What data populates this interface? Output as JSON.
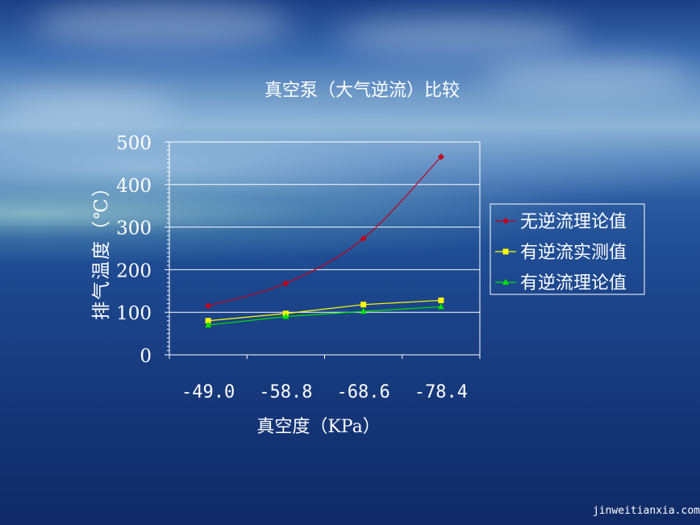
{
  "chart_data": {
    "type": "line",
    "title": "真空泵（大气逆流）比较",
    "xlabel": "真空度（KPa）",
    "ylabel": "排气温度（℃）",
    "categories": [
      "-49.0",
      "-58.8",
      "-68.6",
      "-78.4"
    ],
    "ylim": [
      0,
      500
    ],
    "yticks": [
      "0",
      "100",
      "200",
      "300",
      "400",
      "500"
    ],
    "grid": true,
    "legend_position": "right",
    "series": [
      {
        "name": "无逆流理论值",
        "values": [
          115,
          168,
          273,
          465
        ],
        "color": "#c0001a",
        "marker": "diamond"
      },
      {
        "name": "有逆流实测值",
        "values": [
          80,
          97,
          118,
          128
        ],
        "color": "#ffff00",
        "marker": "square"
      },
      {
        "name": "有逆流理论值",
        "values": [
          70,
          90,
          102,
          113
        ],
        "color": "#00e000",
        "marker": "triangle"
      }
    ]
  },
  "watermark": "jinweitianxia.com"
}
